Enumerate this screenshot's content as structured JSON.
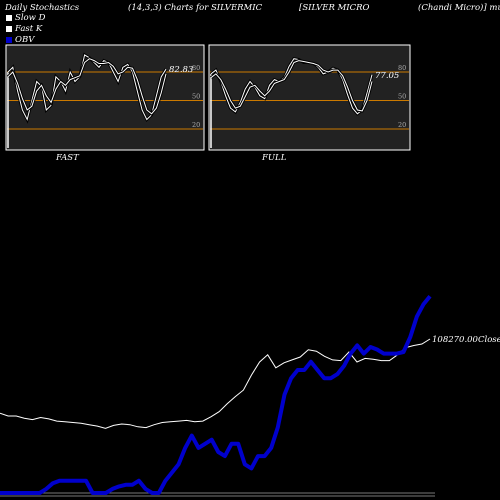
{
  "header": {
    "title": "Daily Stochastics",
    "params": "(14,3,3) Charts for SILVERMIC",
    "name": "[SILVER MICRO",
    "suffix": "(Chandi  Micro)] munafa"
  },
  "legend": [
    {
      "label": "Slow  D",
      "color": "#ffffff"
    },
    {
      "label": "Fast K",
      "color": "#ffffff"
    },
    {
      "label": "OBV",
      "color": "#0000cc"
    }
  ],
  "colors": {
    "background": "#000000",
    "panel": "#222222",
    "level": "#cc7a00",
    "price": "#ffffff",
    "obv": "#0000cc"
  },
  "chart_data": [
    {
      "type": "line",
      "panel_label": "FAST",
      "last_value_label": "82.83",
      "yticks": [
        "80",
        "50",
        "20"
      ],
      "levels": [
        80,
        50,
        20
      ],
      "ylim": [
        0,
        100
      ],
      "series": [
        {
          "name": "Fast K",
          "values": [
            80,
            85,
            60,
            40,
            30,
            50,
            70,
            65,
            40,
            45,
            75,
            70,
            60,
            80,
            70,
            75,
            98,
            95,
            90,
            85,
            92,
            90,
            80,
            70,
            85,
            88,
            80,
            60,
            40,
            30,
            35,
            55,
            75,
            83
          ]
        },
        {
          "name": "Slow  D",
          "values": [
            75,
            80,
            68,
            52,
            40,
            44,
            60,
            66,
            55,
            48,
            62,
            70,
            66,
            72,
            74,
            76,
            90,
            94,
            92,
            89,
            89,
            90,
            86,
            78,
            80,
            85,
            84,
            72,
            55,
            40,
            36,
            42,
            58,
            78
          ]
        }
      ]
    },
    {
      "type": "line",
      "panel_label": "FULL",
      "last_value_label": "77.05",
      "yticks": [
        "80",
        "50",
        "20"
      ],
      "levels": [
        80,
        50,
        20
      ],
      "ylim": [
        0,
        100
      ],
      "series": [
        {
          "name": "Fast K",
          "values": [
            78,
            82,
            70,
            55,
            42,
            38,
            48,
            62,
            70,
            64,
            55,
            52,
            66,
            72,
            70,
            74,
            86,
            94,
            93,
            90,
            90,
            89,
            85,
            78,
            80,
            84,
            82,
            72,
            56,
            42,
            36,
            40,
            58,
            77
          ]
        },
        {
          "name": "Slow  D",
          "values": [
            74,
            78,
            72,
            62,
            50,
            42,
            44,
            54,
            64,
            66,
            60,
            55,
            60,
            68,
            70,
            72,
            80,
            90,
            92,
            91,
            90,
            89,
            87,
            82,
            80,
            82,
            82,
            76,
            64,
            50,
            40,
            39,
            50,
            70
          ]
        }
      ]
    },
    {
      "type": "line",
      "last_value_label": "108270.00Close",
      "series": [
        {
          "name": "Close",
          "values": [
            72,
            68,
            68,
            65,
            63,
            66,
            64,
            61,
            60,
            59,
            58,
            56,
            54,
            51,
            55,
            57,
            56,
            53,
            52,
            56,
            59,
            60,
            61,
            62,
            60,
            61,
            67,
            74,
            85,
            95,
            104,
            125,
            143,
            153,
            135,
            142,
            146,
            150,
            160,
            158,
            151,
            146,
            145,
            157,
            143,
            148,
            147,
            145,
            145,
            153,
            163,
            166,
            168,
            175
          ]
        },
        {
          "name": "OBV",
          "values": [
            0,
            0,
            0,
            0,
            0,
            0,
            0,
            5,
            12,
            15,
            15,
            15,
            15,
            15,
            0,
            0,
            0,
            5,
            8,
            10,
            10,
            15,
            5,
            0,
            0,
            15,
            25,
            35,
            55,
            70,
            55,
            60,
            65,
            50,
            45,
            60,
            60,
            35,
            30,
            45,
            45,
            55,
            80,
            120,
            140,
            150,
            150,
            160,
            150,
            140,
            140,
            145,
            155,
            170,
            180,
            170,
            178,
            175,
            170,
            170,
            170,
            172,
            190,
            215,
            230,
            240
          ]
        }
      ]
    }
  ]
}
